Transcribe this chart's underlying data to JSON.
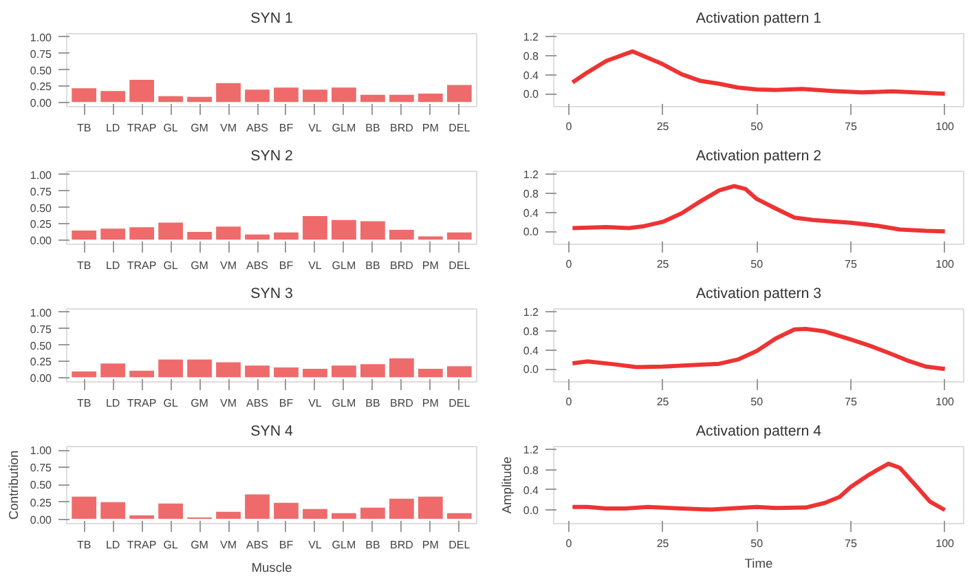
{
  "chart_data": [
    {
      "type": "bar",
      "title": "SYN 1",
      "categories": [
        "TB",
        "LD",
        "TRAP",
        "GL",
        "GM",
        "VM",
        "ABS",
        "BF",
        "VL",
        "GLM",
        "BB",
        "BRD",
        "PM",
        "DEL"
      ],
      "values": [
        0.23,
        0.19,
        0.36,
        0.11,
        0.1,
        0.31,
        0.21,
        0.24,
        0.21,
        0.24,
        0.13,
        0.13,
        0.15,
        0.28
      ],
      "color": "#ef6b6b",
      "ylim": [
        -0.06,
        1.05
      ],
      "yticks": [
        {
          "value": 0,
          "label": "0.00"
        },
        {
          "value": 0.25,
          "label": "0.25"
        },
        {
          "value": 0.5,
          "label": "0.50"
        },
        {
          "value": 0.75,
          "label": "0.75"
        },
        {
          "value": 1,
          "label": "1.00"
        }
      ]
    },
    {
      "type": "line",
      "title": "Activation pattern 1",
      "x": [
        1,
        5,
        10,
        17,
        25,
        30,
        35,
        40,
        45,
        50,
        55,
        62,
        70,
        78,
        86,
        95,
        100
      ],
      "values": [
        0.24,
        0.45,
        0.69,
        0.89,
        0.62,
        0.41,
        0.27,
        0.21,
        0.13,
        0.09,
        0.08,
        0.1,
        0.06,
        0.03,
        0.05,
        0.02,
        0.0
      ],
      "color": "#ee3333",
      "xlim": [
        -4,
        105
      ],
      "ylim": [
        -0.27,
        1.26
      ],
      "xticks": [
        0,
        25,
        50,
        75,
        100
      ],
      "yticks": [
        {
          "value": 0,
          "label": "0.0"
        },
        {
          "value": 0.4,
          "label": "0.4"
        },
        {
          "value": 0.8,
          "label": "0.8"
        },
        {
          "value": 1.2,
          "label": "1.2"
        }
      ]
    },
    {
      "type": "bar",
      "title": "SYN 2",
      "categories": [
        "TB",
        "LD",
        "TRAP",
        "GL",
        "GM",
        "VM",
        "ABS",
        "BF",
        "VL",
        "GLM",
        "BB",
        "BRD",
        "PM",
        "DEL"
      ],
      "values": [
        0.16,
        0.19,
        0.21,
        0.28,
        0.14,
        0.22,
        0.1,
        0.13,
        0.38,
        0.32,
        0.3,
        0.17,
        0.07,
        0.13
      ],
      "color": "#ef6b6b",
      "ylim": [
        -0.06,
        1.05
      ],
      "yticks": [
        {
          "value": 0,
          "label": "0.00"
        },
        {
          "value": 0.25,
          "label": "0.25"
        },
        {
          "value": 0.5,
          "label": "0.50"
        },
        {
          "value": 0.75,
          "label": "0.75"
        },
        {
          "value": 1,
          "label": "1.00"
        }
      ]
    },
    {
      "type": "line",
      "title": "Activation pattern 2",
      "x": [
        1,
        10,
        16,
        20,
        25,
        30,
        35,
        40,
        44,
        47,
        50,
        55,
        60,
        65,
        75,
        82,
        88,
        95,
        100
      ],
      "values": [
        0.07,
        0.09,
        0.07,
        0.11,
        0.2,
        0.38,
        0.63,
        0.86,
        0.95,
        0.89,
        0.68,
        0.48,
        0.29,
        0.24,
        0.18,
        0.12,
        0.04,
        0.01,
        0.0
      ],
      "color": "#ee3333",
      "xlim": [
        -4,
        105
      ],
      "ylim": [
        -0.27,
        1.26
      ],
      "xticks": [
        0,
        25,
        50,
        75,
        100
      ],
      "yticks": [
        {
          "value": 0,
          "label": "0.0"
        },
        {
          "value": 0.4,
          "label": "0.4"
        },
        {
          "value": 0.8,
          "label": "0.8"
        },
        {
          "value": 1.2,
          "label": "1.2"
        }
      ]
    },
    {
      "type": "bar",
      "title": "SYN 3",
      "categories": [
        "TB",
        "LD",
        "TRAP",
        "GL",
        "GM",
        "VM",
        "ABS",
        "BF",
        "VL",
        "GLM",
        "BB",
        "BRD",
        "PM",
        "DEL"
      ],
      "values": [
        0.11,
        0.23,
        0.12,
        0.29,
        0.29,
        0.25,
        0.2,
        0.17,
        0.15,
        0.2,
        0.22,
        0.31,
        0.15,
        0.19
      ],
      "color": "#ef6b6b",
      "ylim": [
        -0.06,
        1.05
      ],
      "yticks": [
        {
          "value": 0,
          "label": "0.00"
        },
        {
          "value": 0.25,
          "label": "0.25"
        },
        {
          "value": 0.5,
          "label": "0.50"
        },
        {
          "value": 0.75,
          "label": "0.75"
        },
        {
          "value": 1,
          "label": "1.00"
        }
      ]
    },
    {
      "type": "line",
      "title": "Activation pattern 3",
      "x": [
        1,
        5,
        12,
        18,
        25,
        35,
        40,
        45,
        50,
        55,
        60,
        63,
        68,
        75,
        80,
        85,
        90,
        95,
        100
      ],
      "values": [
        0.12,
        0.16,
        0.1,
        0.04,
        0.05,
        0.09,
        0.11,
        0.2,
        0.38,
        0.64,
        0.83,
        0.84,
        0.79,
        0.62,
        0.49,
        0.34,
        0.18,
        0.05,
        0.0
      ],
      "color": "#ee3333",
      "xlim": [
        -4,
        105
      ],
      "ylim": [
        -0.27,
        1.26
      ],
      "xticks": [
        0,
        25,
        50,
        75,
        100
      ],
      "yticks": [
        {
          "value": 0,
          "label": "0.0"
        },
        {
          "value": 0.4,
          "label": "0.4"
        },
        {
          "value": 0.8,
          "label": "0.8"
        },
        {
          "value": 1.2,
          "label": "1.2"
        }
      ]
    },
    {
      "type": "bar",
      "title": "SYN 4",
      "xlabel": "Muscle",
      "ylabel": "Contribution",
      "categories": [
        "TB",
        "LD",
        "TRAP",
        "GL",
        "GM",
        "VM",
        "ABS",
        "BF",
        "VL",
        "GLM",
        "BB",
        "BRD",
        "PM",
        "DEL"
      ],
      "values": [
        0.34,
        0.26,
        0.07,
        0.24,
        0.04,
        0.12,
        0.37,
        0.25,
        0.16,
        0.1,
        0.18,
        0.31,
        0.34,
        0.1
      ],
      "color": "#ef6b6b",
      "ylim": [
        -0.06,
        1.05
      ],
      "yticks": [
        {
          "value": 0,
          "label": "0.00"
        },
        {
          "value": 0.25,
          "label": "0.25"
        },
        {
          "value": 0.5,
          "label": "0.50"
        },
        {
          "value": 0.75,
          "label": "0.75"
        },
        {
          "value": 1,
          "label": "1.00"
        }
      ]
    },
    {
      "type": "line",
      "title": "Activation pattern 4",
      "xlabel": "Time",
      "ylabel": "Amplitude",
      "x": [
        1,
        5,
        10,
        15,
        21,
        30,
        38,
        45,
        50,
        55,
        63,
        68,
        72,
        75,
        80,
        85,
        88,
        92,
        96,
        100
      ],
      "values": [
        0.06,
        0.06,
        0.03,
        0.03,
        0.06,
        0.03,
        0.01,
        0.04,
        0.06,
        0.04,
        0.05,
        0.14,
        0.26,
        0.46,
        0.71,
        0.92,
        0.84,
        0.51,
        0.17,
        0.0
      ],
      "color": "#ee3333",
      "xlim": [
        -4,
        105
      ],
      "ylim": [
        -0.27,
        1.26
      ],
      "xticks": [
        0,
        25,
        50,
        75,
        100
      ],
      "yticks": [
        {
          "value": 0,
          "label": "0.0"
        },
        {
          "value": 0.4,
          "label": "0.4"
        },
        {
          "value": 0.8,
          "label": "0.8"
        },
        {
          "value": 1.2,
          "label": "1.2"
        }
      ]
    }
  ]
}
